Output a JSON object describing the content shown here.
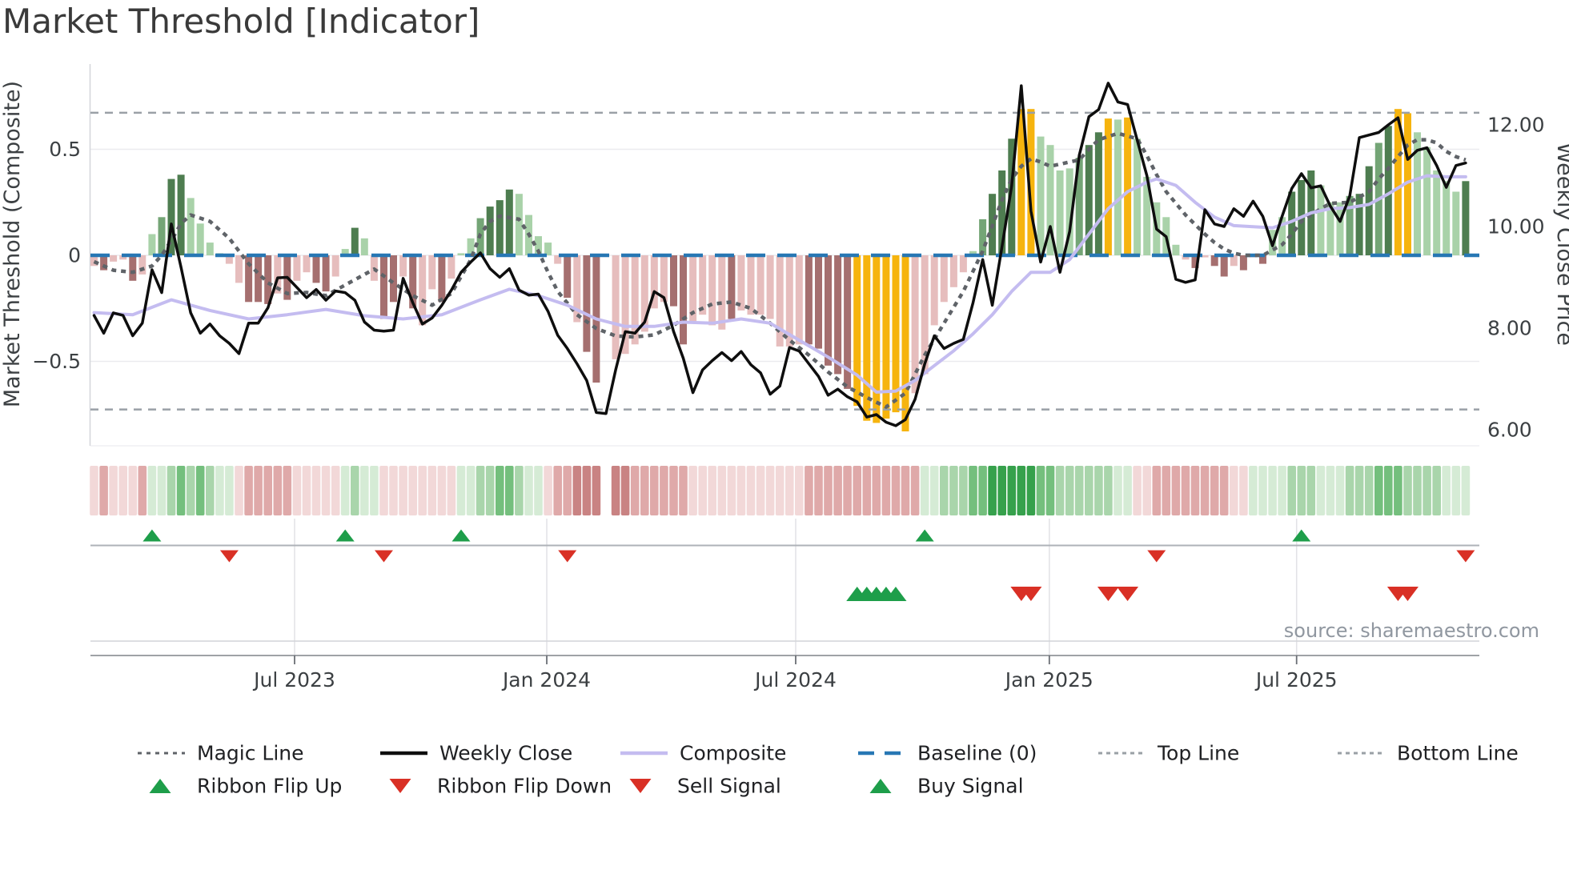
{
  "title": "Market Threshold [Indicator]",
  "source": "source: sharemaestro.com",
  "axes": {
    "left": {
      "title": "Market Threshold (Composite)",
      "ticks": [
        {
          "v": 0.5,
          "label": "0.5"
        },
        {
          "v": 0,
          "label": "0"
        },
        {
          "v": -0.5,
          "label": "−0.5"
        }
      ]
    },
    "right": {
      "title": "Weekly Close Price",
      "ticks": [
        {
          "v": 12,
          "label": "12.00"
        },
        {
          "v": 10,
          "label": "10.00"
        },
        {
          "v": 8,
          "label": "8.00"
        },
        {
          "v": 6,
          "label": "6.00"
        }
      ]
    },
    "x": {
      "ticks": [
        {
          "week": 20.76,
          "label": "Jul 2023"
        },
        {
          "week": 46.87,
          "label": "Jan 2024"
        },
        {
          "week": 72.64,
          "label": "Jul 2024"
        },
        {
          "week": 98.9,
          "label": "Jan 2025"
        },
        {
          "week": 124.5,
          "label": "Jul 2025"
        }
      ]
    }
  },
  "reference_lines": {
    "baseline": 0,
    "top_line": 0.672,
    "bottom_line": -0.727
  },
  "colors": {
    "bars": {
      "lg": "#a9d2a9",
      "mg": "#74a576",
      "dg": "#4e7d50",
      "lp": "#e6bdbd",
      "dr": "#a56f6f",
      "au": "#f6b40e"
    },
    "ribbon": {
      "p1": "#f2d8d8",
      "p2": "#dfa9a9",
      "p3": "#c98383",
      "g1": "#d5ebd5",
      "g2": "#a9d5ab",
      "g3": "#74bf7d",
      "g4": "#36a14c"
    },
    "weekly_close": "#0e0e0e",
    "composite_line": "#c4bcf0",
    "magic_line": "#5f6368",
    "baseline": "#2777b4",
    "ref_line": "#9aa0a6",
    "flip_up": "#1e9e4a",
    "flip_down": "#d93025",
    "buy": "#1e9e4a",
    "sell": "#d93025",
    "grid": "#ebebef",
    "tick_text": "#3c4043",
    "title_text": "#3a3a3a",
    "source_text": "#9097a0"
  },
  "legend": {
    "row1": [
      {
        "label": "Magic Line",
        "type": "dotted",
        "color": "#5f6368"
      },
      {
        "label": "Weekly Close",
        "type": "solid",
        "color": "#0e0e0e"
      },
      {
        "label": "Composite",
        "type": "solid",
        "color": "#c4bcf0"
      },
      {
        "label": "Baseline (0)",
        "type": "dash-long",
        "color": "#2777b4"
      },
      {
        "label": "Top Line",
        "type": "dash",
        "color": "#9aa0a6"
      },
      {
        "label": "Bottom Line",
        "type": "dash",
        "color": "#9aa0a6"
      }
    ],
    "row2": [
      {
        "label": "Ribbon Flip Up",
        "type": "tri-up",
        "color": "#1e9e4a"
      },
      {
        "label": "Ribbon Flip Down",
        "type": "tri-down",
        "color": "#d93025"
      },
      {
        "label": "Sell Signal",
        "type": "tri-down",
        "color": "#d93025"
      },
      {
        "label": "Buy Signal",
        "type": "tri-up",
        "color": "#1e9e4a"
      }
    ]
  },
  "chart_data": {
    "type": "combo-bar-line-heatmap-signals",
    "weeks": 143,
    "ylim_left": [
      -0.9,
      0.85
    ],
    "ylim_right": [
      6,
      13
    ],
    "composite_bars": {
      "values": [
        -0.05,
        -0.07,
        -0.03,
        -0.02,
        -0.12,
        -0.09,
        0.1,
        0.18,
        0.36,
        0.38,
        0.27,
        0.15,
        0.06,
        0.01,
        -0.04,
        -0.13,
        -0.22,
        -0.22,
        -0.23,
        -0.18,
        -0.21,
        -0.12,
        -0.08,
        -0.13,
        -0.17,
        -0.1,
        0.03,
        0.13,
        0.08,
        -0.12,
        -0.3,
        -0.22,
        -0.1,
        -0.25,
        -0.33,
        -0.16,
        -0.22,
        -0.11,
        0.01,
        0.08,
        0.175,
        0.23,
        0.26,
        0.31,
        0.29,
        0.19,
        0.09,
        0.06,
        -0.04,
        -0.2,
        -0.315,
        -0.455,
        -0.6,
        null,
        -0.49,
        -0.465,
        -0.42,
        -0.36,
        -0.25,
        -0.22,
        -0.24,
        -0.42,
        -0.31,
        -0.28,
        -0.33,
        -0.35,
        -0.3,
        -0.26,
        -0.28,
        -0.28,
        -0.3,
        -0.43,
        -0.43,
        -0.42,
        -0.42,
        -0.44,
        -0.52,
        -0.56,
        -0.63,
        -0.71,
        -0.78,
        -0.79,
        -0.77,
        -0.74,
        -0.83,
        -0.65,
        -0.56,
        -0.33,
        -0.22,
        -0.15,
        -0.08,
        0.02,
        0.17,
        0.29,
        0.4,
        0.55,
        0.69,
        0.69,
        0.56,
        0.52,
        0.4,
        0.41,
        0.46,
        0.52,
        0.58,
        0.645,
        0.64,
        0.65,
        0.55,
        0.37,
        0.25,
        0.18,
        0.05,
        -0.02,
        -0.06,
        -0.01,
        -0.05,
        -0.1,
        -0.05,
        -0.07,
        -0.01,
        -0.04,
        0.12,
        0.18,
        0.3,
        0.355,
        0.4,
        0.33,
        0.25,
        0.25,
        0.28,
        0.29,
        0.42,
        0.53,
        0.61,
        0.69,
        0.67,
        0.58,
        0.51,
        0.4,
        0.35,
        0.3,
        0.35
      ],
      "styles": [
        "lp",
        "dr",
        "lp",
        "lp",
        "dr",
        "lp",
        "lg",
        "mg",
        "dg",
        "dg",
        "lg",
        "lg",
        "lg",
        "lg",
        "lp",
        "lp",
        "dr",
        "dr",
        "dr",
        "lp",
        "dr",
        "lp",
        "lp",
        "dr",
        "dr",
        "lp",
        "lg",
        "dg",
        "lg",
        "lp",
        "dr",
        "dr",
        "lp",
        "dr",
        "lp",
        "lp",
        "dr",
        "lp",
        "lg",
        "lg",
        "mg",
        "dg",
        "dg",
        "dg",
        "lg",
        "lg",
        "lg",
        "lg",
        "lp",
        "dr",
        "lp",
        "dr",
        "dr",
        null,
        "lp",
        "lp",
        "lp",
        "lp",
        "lp",
        "lp",
        "dr",
        "dr",
        "lp",
        "lp",
        "lp",
        "lp",
        "dr",
        "lp",
        "lp",
        "lp",
        "lp",
        "lp",
        "lp",
        "lp",
        "dr",
        "dr",
        "dr",
        "dr",
        "dr",
        "au",
        "au",
        "au",
        "au",
        "au",
        "au",
        "lp",
        "lp",
        "lp",
        "lp",
        "lp",
        "lp",
        "lg",
        "mg",
        "dg",
        "dg",
        "dg",
        "au",
        "au",
        "lg",
        "lg",
        "lg",
        "lg",
        "mg",
        "dg",
        "dg",
        "au",
        "lg",
        "au",
        "lg",
        "lg",
        "lg",
        "lg",
        "lg",
        "lp",
        "dr",
        "lp",
        "dr",
        "dr",
        "lp",
        "dr",
        "lp",
        "dr",
        "lg",
        "lg",
        "dg",
        "dg",
        "dg",
        "lg",
        "lg",
        "lg",
        "mg",
        "dg",
        "dg",
        "mg",
        "dg",
        "au",
        "au",
        "lg",
        "lg",
        "lg",
        "lg",
        "lg",
        "dg"
      ]
    },
    "weekly_close": [
      8.25,
      7.9,
      8.3,
      8.25,
      7.85,
      8.1,
      9.15,
      8.7,
      10.05,
      9.2,
      8.3,
      7.9,
      8.08,
      7.85,
      7.7,
      7.5,
      8.1,
      8.1,
      8.4,
      8.99,
      9.0,
      8.8,
      8.6,
      8.76,
      8.55,
      8.73,
      8.7,
      8.55,
      8.12,
      7.96,
      7.94,
      7.96,
      8.98,
      8.5,
      8.08,
      8.2,
      8.45,
      8.75,
      9.1,
      9.3,
      9.48,
      9.17,
      9.0,
      9.17,
      8.75,
      8.65,
      8.67,
      8.33,
      7.86,
      7.6,
      7.3,
      6.97,
      6.34,
      6.32,
      7.18,
      7.93,
      7.9,
      8.12,
      8.72,
      8.6,
      7.93,
      7.41,
      6.73,
      7.18,
      7.36,
      7.52,
      7.36,
      7.54,
      7.28,
      7.12,
      6.7,
      6.86,
      7.62,
      7.55,
      7.3,
      7.05,
      6.68,
      6.8,
      6.65,
      6.55,
      6.25,
      6.3,
      6.15,
      6.08,
      6.2,
      6.6,
      7.3,
      7.85,
      7.6,
      7.7,
      7.78,
      8.5,
      9.35,
      8.45,
      9.6,
      10.8,
      12.77,
      10.3,
      9.3,
      10.0,
      9.1,
      9.9,
      11.4,
      12.16,
      12.3,
      12.82,
      12.45,
      12.4,
      11.7,
      11.0,
      9.95,
      9.8,
      8.96,
      8.9,
      8.95,
      10.33,
      10.05,
      10.0,
      10.35,
      10.2,
      10.5,
      10.2,
      9.62,
      10.2,
      10.75,
      11.04,
      10.76,
      10.8,
      10.4,
      10.1,
      10.6,
      11.75,
      11.8,
      11.85,
      12.0,
      12.14,
      11.32,
      11.5,
      11.55,
      11.2,
      10.77,
      11.2,
      11.25
    ],
    "composite_line": [
      [
        0,
        -0.27
      ],
      [
        4,
        -0.28
      ],
      [
        8,
        -0.21
      ],
      [
        12,
        -0.26
      ],
      [
        16,
        -0.3
      ],
      [
        20,
        -0.28
      ],
      [
        24,
        -0.255
      ],
      [
        28,
        -0.285
      ],
      [
        32,
        -0.3
      ],
      [
        36,
        -0.28
      ],
      [
        40,
        -0.21
      ],
      [
        43,
        -0.16
      ],
      [
        46,
        -0.19
      ],
      [
        49,
        -0.235
      ],
      [
        52,
        -0.3
      ],
      [
        55,
        -0.335
      ],
      [
        58,
        -0.335
      ],
      [
        61,
        -0.315
      ],
      [
        64,
        -0.32
      ],
      [
        67,
        -0.3
      ],
      [
        70,
        -0.32
      ],
      [
        73,
        -0.4
      ],
      [
        76,
        -0.48
      ],
      [
        79,
        -0.565
      ],
      [
        81,
        -0.645
      ],
      [
        83,
        -0.64
      ],
      [
        85,
        -0.59
      ],
      [
        87,
        -0.52
      ],
      [
        89,
        -0.45
      ],
      [
        91,
        -0.37
      ],
      [
        93,
        -0.28
      ],
      [
        95,
        -0.17
      ],
      [
        97,
        -0.08
      ],
      [
        99,
        -0.08
      ],
      [
        101,
        -0.02
      ],
      [
        103,
        0.1
      ],
      [
        105,
        0.22
      ],
      [
        107,
        0.3
      ],
      [
        109,
        0.345
      ],
      [
        110,
        0.36
      ],
      [
        112,
        0.33
      ],
      [
        114,
        0.25
      ],
      [
        116,
        0.18
      ],
      [
        118,
        0.14
      ],
      [
        120,
        0.135
      ],
      [
        122,
        0.13
      ],
      [
        124,
        0.16
      ],
      [
        126,
        0.2
      ],
      [
        128,
        0.22
      ],
      [
        130,
        0.225
      ],
      [
        132,
        0.24
      ],
      [
        134,
        0.29
      ],
      [
        136,
        0.345
      ],
      [
        138,
        0.375
      ],
      [
        140,
        0.37
      ],
      [
        142,
        0.37
      ]
    ],
    "magic_line": [
      [
        0,
        -0.03
      ],
      [
        2,
        -0.07
      ],
      [
        4,
        -0.08
      ],
      [
        6,
        -0.05
      ],
      [
        7,
        0.0
      ],
      [
        8,
        0.07
      ],
      [
        9,
        0.15
      ],
      [
        10,
        0.19
      ],
      [
        12,
        0.16
      ],
      [
        14,
        0.08
      ],
      [
        16,
        -0.04
      ],
      [
        18,
        -0.13
      ],
      [
        20,
        -0.18
      ],
      [
        22,
        -0.175
      ],
      [
        24,
        -0.19
      ],
      [
        26,
        -0.14
      ],
      [
        28,
        -0.09
      ],
      [
        29,
        -0.065
      ],
      [
        31,
        -0.13
      ],
      [
        33,
        -0.19
      ],
      [
        35,
        -0.235
      ],
      [
        37,
        -0.18
      ],
      [
        38,
        -0.1
      ],
      [
        39,
        -0.02
      ],
      [
        40,
        0.1
      ],
      [
        41,
        0.16
      ],
      [
        42,
        0.185
      ],
      [
        44,
        0.17
      ],
      [
        45,
        0.1
      ],
      [
        46,
        0.02
      ],
      [
        47,
        -0.08
      ],
      [
        48,
        -0.17
      ],
      [
        50,
        -0.28
      ],
      [
        52,
        -0.345
      ],
      [
        54,
        -0.38
      ],
      [
        56,
        -0.385
      ],
      [
        58,
        -0.375
      ],
      [
        60,
        -0.33
      ],
      [
        62,
        -0.27
      ],
      [
        64,
        -0.23
      ],
      [
        66,
        -0.22
      ],
      [
        68,
        -0.25
      ],
      [
        70,
        -0.32
      ],
      [
        72,
        -0.4
      ],
      [
        74,
        -0.47
      ],
      [
        76,
        -0.55
      ],
      [
        78,
        -0.62
      ],
      [
        80,
        -0.67
      ],
      [
        82,
        -0.715
      ],
      [
        84,
        -0.65
      ],
      [
        86,
        -0.47
      ],
      [
        88,
        -0.32
      ],
      [
        90,
        -0.17
      ],
      [
        92,
        0.02
      ],
      [
        94,
        0.26
      ],
      [
        95,
        0.36
      ],
      [
        96,
        0.42
      ],
      [
        97,
        0.455
      ],
      [
        98,
        0.44
      ],
      [
        99,
        0.42
      ],
      [
        100,
        0.43
      ],
      [
        101,
        0.44
      ],
      [
        102,
        0.45
      ],
      [
        103,
        0.5
      ],
      [
        104,
        0.545
      ],
      [
        106,
        0.575
      ],
      [
        108,
        0.55
      ],
      [
        109,
        0.47
      ],
      [
        110,
        0.38
      ],
      [
        111,
        0.3
      ],
      [
        112,
        0.245
      ],
      [
        113,
        0.19
      ],
      [
        114,
        0.145
      ],
      [
        115,
        0.1
      ],
      [
        116,
        0.06
      ],
      [
        117,
        0.03
      ],
      [
        118,
        0.01
      ],
      [
        119,
        0.0
      ],
      [
        121,
        0.0
      ],
      [
        123,
        0.05
      ],
      [
        124,
        0.1
      ],
      [
        125,
        0.16
      ],
      [
        126,
        0.19
      ],
      [
        127,
        0.22
      ],
      [
        128,
        0.245
      ],
      [
        130,
        0.25
      ],
      [
        132,
        0.3
      ],
      [
        133,
        0.36
      ],
      [
        134,
        0.41
      ],
      [
        135,
        0.465
      ],
      [
        136,
        0.52
      ],
      [
        137,
        0.545
      ],
      [
        138,
        0.545
      ],
      [
        139,
        0.53
      ],
      [
        140,
        0.49
      ],
      [
        141,
        0.465
      ],
      [
        142,
        0.45
      ]
    ],
    "ribbon": [
      "p1",
      "p2",
      "p1",
      "p1",
      "p1",
      "p2",
      "g1",
      "g1",
      "g2",
      "g3",
      "g2",
      "g3",
      "g2",
      "g1",
      "g1",
      "p1",
      "p2",
      "p2",
      "p2",
      "p2",
      "p2",
      "p1",
      "p1",
      "p1",
      "p1",
      "p1",
      "g1",
      "g2",
      "g1",
      "g1",
      "p1",
      "p1",
      "p1",
      "p1",
      "p1",
      "p1",
      "p1",
      "p1",
      "g1",
      "g1",
      "g2",
      "g2",
      "g3",
      "g3",
      "g2",
      "g1",
      "g1",
      "p1",
      "p2",
      "p2",
      "p3",
      "p3",
      "p3",
      null,
      "p3",
      "p3",
      "p2",
      "p2",
      "p2",
      "p2",
      "p2",
      "p2",
      "p1",
      "p1",
      "p1",
      "p1",
      "p1",
      "p1",
      "p1",
      "p1",
      "p1",
      "p1",
      "p1",
      "p1",
      "p2",
      "p2",
      "p2",
      "p2",
      "p2",
      "p2",
      "p2",
      "p2",
      "p2",
      "p2",
      "p2",
      "p2",
      "g1",
      "g1",
      "g2",
      "g2",
      "g2",
      "g3",
      "g3",
      "g4",
      "g4",
      "g4",
      "g4",
      "g4",
      "g3",
      "g3",
      "g2",
      "g2",
      "g2",
      "g2",
      "g2",
      "g2",
      "g1",
      "g1",
      "p1",
      "p1",
      "p2",
      "p2",
      "p2",
      "p2",
      "p2",
      "p2",
      "p2",
      "p2",
      "p1",
      "p1",
      "g1",
      "g1",
      "g1",
      "g1",
      "g2",
      "g2",
      "g2",
      "g1",
      "g1",
      "g1",
      "g2",
      "g2",
      "g2",
      "g3",
      "g3",
      "g3",
      "g2",
      "g2",
      "g2",
      "g2",
      "g1",
      "g1",
      "g1"
    ],
    "signals": {
      "ribbon_flip_up_weeks": [
        6,
        26,
        38,
        86,
        125
      ],
      "ribbon_flip_down_weeks": [
        14,
        30,
        49,
        110,
        142
      ],
      "buy_signal_weeks": [
        79,
        80,
        81,
        82,
        83
      ],
      "sell_signal_weeks": [
        96,
        97,
        105,
        107,
        135,
        136
      ]
    }
  }
}
